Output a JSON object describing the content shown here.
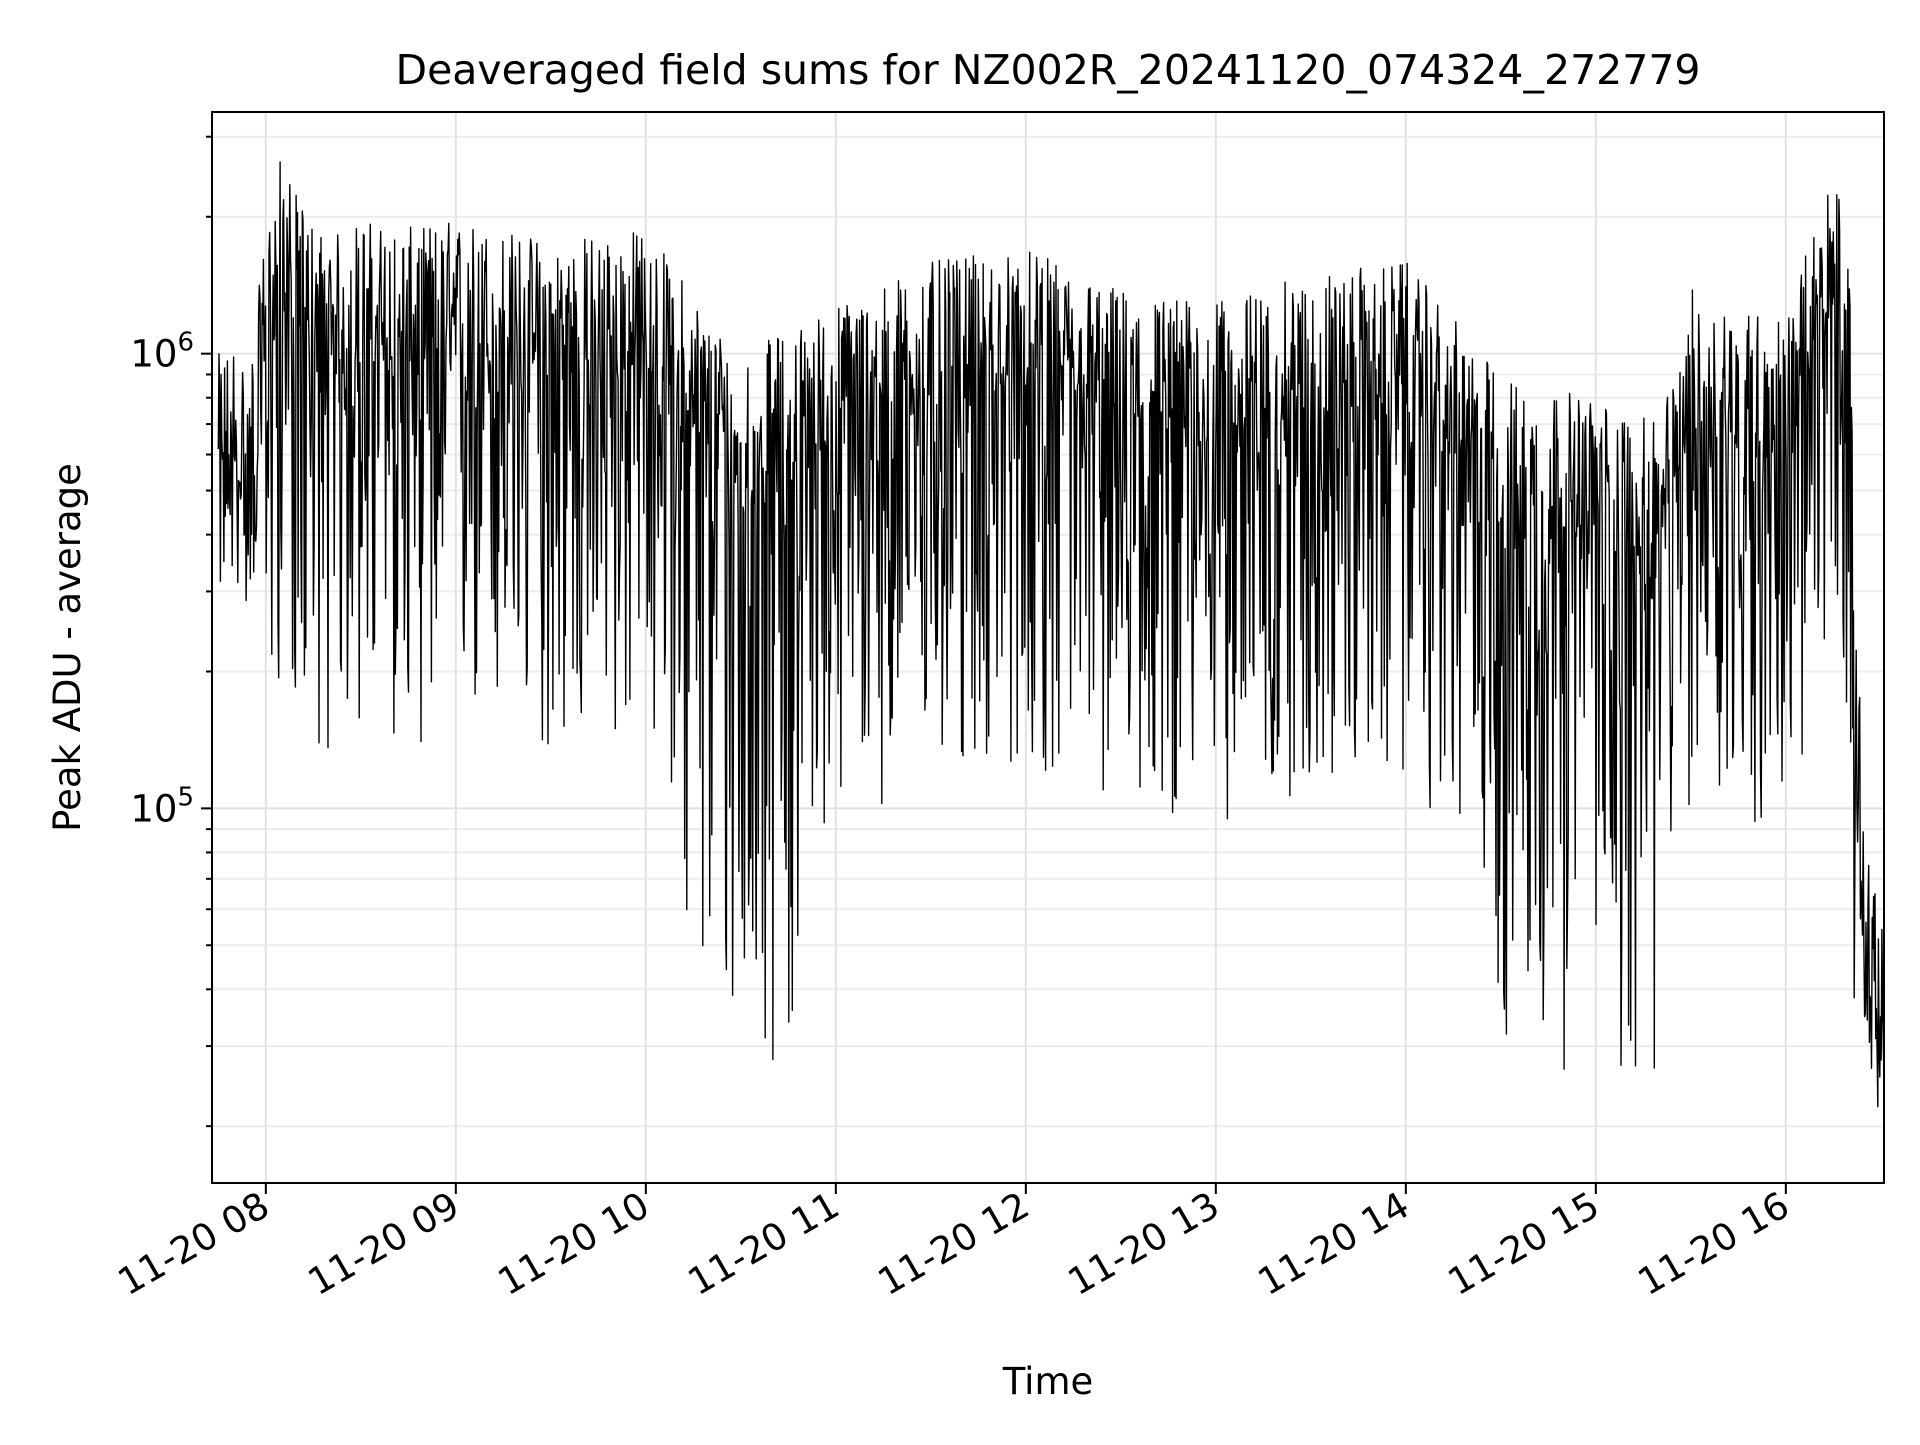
{
  "chart_data": {
    "type": "line",
    "title": "Deaveraged field sums for NZ002R_20241120_074324_272779",
    "xlabel": "Time",
    "ylabel": "Peak ADU - average",
    "yscale": "log",
    "ylim": [
      15000,
      3400000
    ],
    "xlim": [
      "11-20 07:43",
      "11-20 16:31"
    ],
    "grid": true,
    "line_color": "#000000",
    "x_ticks": [
      "11-20 08",
      "11-20 09",
      "11-20 10",
      "11-20 11",
      "11-20 12",
      "11-20 13",
      "11-20 14",
      "11-20 15",
      "11-20 16"
    ],
    "y_ticks": [
      {
        "base": "10",
        "exp": "5",
        "value": 100000
      },
      {
        "base": "10",
        "exp": "6",
        "value": 1000000
      }
    ],
    "series": [
      {
        "values_note": "dense noisy trace; representative samples (time, value)",
        "points": [
          [
            "11-20 07:45",
            500000
          ],
          [
            "11-20 07:50",
            550000
          ],
          [
            "11-20 07:55",
            470000
          ],
          [
            "11-20 08:00",
            950000
          ],
          [
            "11-20 08:05",
            1400000
          ],
          [
            "11-20 08:10",
            1100000
          ],
          [
            "11-20 08:20",
            900000
          ],
          [
            "11-20 08:30",
            1000000
          ],
          [
            "11-20 08:45",
            950000
          ],
          [
            "11-20 09:00",
            1000000
          ],
          [
            "11-20 09:30",
            900000
          ],
          [
            "11-20 10:00",
            950000
          ],
          [
            "11-20 10:30",
            500000
          ],
          [
            "11-20 11:00",
            650000
          ],
          [
            "11-20 11:30",
            800000
          ],
          [
            "11-20 12:00",
            850000
          ],
          [
            "11-20 12:30",
            700000
          ],
          [
            "11-20 13:00",
            650000
          ],
          [
            "11-20 13:30",
            750000
          ],
          [
            "11-20 14:00",
            800000
          ],
          [
            "11-20 14:30",
            450000
          ],
          [
            "11-20 15:00",
            400000
          ],
          [
            "11-20 15:20",
            350000
          ],
          [
            "11-20 15:30",
            700000
          ],
          [
            "11-20 16:00",
            600000
          ],
          [
            "11-20 16:15",
            1300000
          ],
          [
            "11-20 16:20",
            900000
          ],
          [
            "11-20 16:22",
            150000
          ],
          [
            "11-20 16:25",
            45000
          ],
          [
            "11-20 16:30",
            28000
          ]
        ]
      }
    ]
  }
}
